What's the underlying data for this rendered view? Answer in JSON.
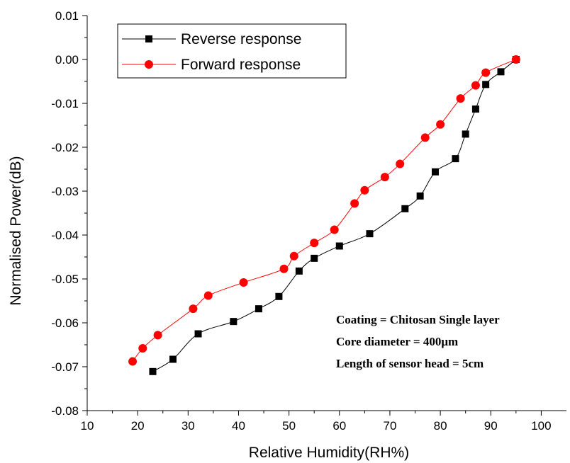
{
  "chart_data": {
    "type": "line",
    "xlabel": "Relative Humidity(RH%)",
    "ylabel": "Normalised Power(dB)",
    "xlim": [
      10,
      105
    ],
    "ylim": [
      -0.08,
      0.01
    ],
    "xticks": [
      10,
      20,
      30,
      40,
      50,
      60,
      70,
      80,
      90,
      100
    ],
    "xtick_labels": [
      "10",
      "20",
      "30",
      "40",
      "50",
      "60",
      "70",
      "80",
      "90",
      "100"
    ],
    "yticks": [
      0.01,
      0.0,
      -0.01,
      -0.02,
      -0.03,
      -0.04,
      -0.05,
      -0.06,
      -0.07,
      -0.08
    ],
    "ytick_labels": [
      "0.01",
      "0.00",
      "-0.01",
      "-0.02",
      "-0.03",
      "-0.04",
      "-0.05",
      "-0.06",
      "-0.07",
      "-0.08"
    ],
    "grid": false,
    "legend_position": "top-left",
    "series": [
      {
        "name": "Reverse response",
        "color": "#000000",
        "marker": "square",
        "x": [
          23,
          27,
          32,
          39,
          44,
          48,
          52,
          55,
          60,
          66,
          73,
          76,
          79,
          83,
          85,
          87,
          89,
          92,
          95
        ],
        "y": [
          -0.0711,
          -0.0683,
          -0.0625,
          -0.0597,
          -0.0568,
          -0.054,
          -0.0482,
          -0.0453,
          -0.0425,
          -0.0397,
          -0.034,
          -0.0311,
          -0.0256,
          -0.0226,
          -0.017,
          -0.0113,
          -0.0057,
          -0.0028,
          0.0
        ]
      },
      {
        "name": "Forward response",
        "color": "#ff0000",
        "marker": "circle",
        "x": [
          19,
          21,
          24,
          31,
          34,
          41,
          49,
          51,
          55,
          59,
          63,
          65,
          69,
          72,
          77,
          80,
          84,
          87,
          89,
          95
        ],
        "y": [
          -0.0688,
          -0.0658,
          -0.0628,
          -0.0568,
          -0.0538,
          -0.0508,
          -0.0477,
          -0.0448,
          -0.0418,
          -0.0388,
          -0.0328,
          -0.0298,
          -0.0268,
          -0.0238,
          -0.0178,
          -0.0148,
          -0.0089,
          -0.0059,
          -0.003,
          0.0
        ]
      }
    ],
    "annotations": [
      "Coating = Chitosan Single layer",
      "Core diameter = 400μm",
      "Length of sensor head = 5cm"
    ]
  }
}
